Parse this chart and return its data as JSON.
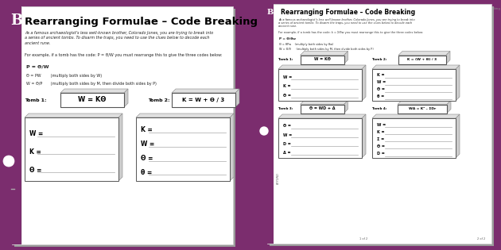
{
  "bg_color": "#7B2D6E",
  "title": "Rearranging Formulae – Code Breaking",
  "intro_text_lines": [
    "As a famous archaeologist’s less well-known brother, Colorado Jones, you are trying to break into",
    "a series of ancient tombs. To disarm the traps, you need to use the clues below to decode each",
    "ancient rune."
  ],
  "example_line": "For example, if a tomb has the code: P = Θ/W you must rearrange this to give the three codes below:",
  "eq1": "P = Θ/W",
  "eq2": "Θ = PW        (multiply both sides by W)",
  "eq3": "W = Θ/P       (multiply both sides by M, then divide both sides by P)",
  "tomb1_label": "Tomb 1:",
  "tomb1_formula": "W = KΘ",
  "tomb2_label": "Tomb 2:",
  "tomb2_formula": "K = W + Θ / 3",
  "answer_vars_tomb1": [
    "W =",
    "K =",
    "Θ ="
  ],
  "answer_vars_tomb2": [
    "K =",
    "W =",
    "Θ =",
    "θ ="
  ],
  "p2_title": "Rearranging Formulae – Code Breaking",
  "p2_intro": [
    "As a famous archaeologist’s less well-known brother, Colorado Jones, you are trying to break into",
    "a series of ancient tombs. To disarm the traps, you need to use the clues below to decode each",
    "ancient rune."
  ],
  "p2_example": "For example, if a tomb has the code: k = Σ/θw you must rearrange this to give the three codes below:",
  "p2_eq1": "P = Θ/θw",
  "p2_eq2": "Θ = θPw    (multiply both sides by θw)",
  "p2_eq3": "W = Θ/θ      (multiply both sides by M, then divide both sides by P)",
  "p2_tomb1_label": "Tomb 1:",
  "p2_tomb1_formula": "W = KΘ",
  "p2_tomb2_label": "Tomb 2:",
  "p2_tomb2_formula": "K = (W + Θ) / 3",
  "p2_ans1": [
    "W =",
    "K =",
    "Θ ="
  ],
  "p2_ans2": [
    "K =",
    "W =",
    "Θ =",
    "θ ="
  ],
  "p2_tomb3_label": "Tomb 3:",
  "p2_tomb3_formula": "Θ = WD + Δ",
  "p2_tomb4_label": "Tomb 4:",
  "p2_tomb4_formula": "WΔ = K² – ΣDr",
  "p2_ans3": [
    "Θ =",
    "W =",
    "D =",
    "Δ ="
  ],
  "p2_ans4": [
    "W =",
    "K =",
    "Σ =",
    "Θ =",
    "D ="
  ],
  "page_num_left": "1 of 2",
  "page_num_right": "2 of 2",
  "beyond_text": "BEYOND"
}
